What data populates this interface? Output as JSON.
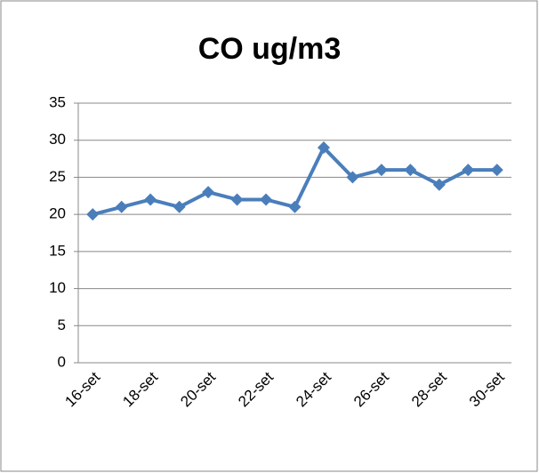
{
  "chart_data": {
    "type": "line",
    "title": "CO ug/m3",
    "categories": [
      "16-set",
      null,
      "18-set",
      null,
      "20-set",
      null,
      "22-set",
      null,
      "24-set",
      null,
      "26-set",
      null,
      "28-set",
      null,
      "30-set"
    ],
    "series": [
      {
        "name": "CO",
        "color": "#4a7ebb",
        "values": [
          20,
          21,
          22,
          21,
          23,
          22,
          22,
          21,
          29,
          25,
          26,
          26,
          24,
          26,
          26
        ]
      }
    ],
    "ylim": [
      0,
      35
    ],
    "yticks": [
      0,
      5,
      10,
      15,
      20,
      25,
      30,
      35
    ],
    "grid": true
  }
}
